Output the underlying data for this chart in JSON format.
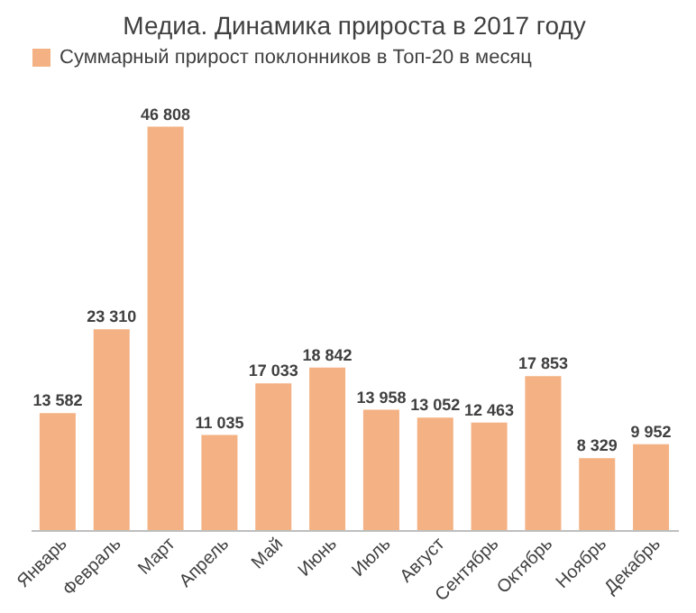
{
  "chart_data": {
    "type": "bar",
    "title": "Медиа. Динамика прироста в 2017 году",
    "categories": [
      "Январь",
      "Февраль",
      "Март",
      "Апрель",
      "Май",
      "Июнь",
      "Июль",
      "Август",
      "Сентябрь",
      "Октябрь",
      "Ноябрь",
      "Декабрь"
    ],
    "series": [
      {
        "name": "Суммарный прирост поклонников в Топ-20 в месяц",
        "color": "#f4b183",
        "values": [
          13582,
          23310,
          46808,
          11035,
          17033,
          18842,
          13958,
          13052,
          12463,
          17853,
          8329,
          9952
        ],
        "value_labels": [
          "13 582",
          "23 310",
          "46 808",
          "11 035",
          "17 033",
          "18 842",
          "13 958",
          "13 052",
          "12 463",
          "17 853",
          "8 329",
          "9 952"
        ]
      }
    ],
    "legend": "top",
    "grid": false
  }
}
